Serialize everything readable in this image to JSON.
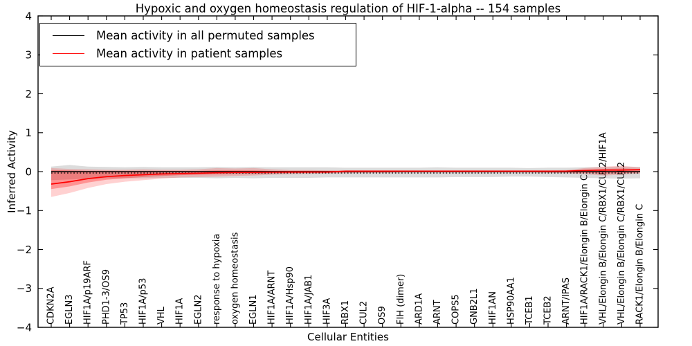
{
  "figure": {
    "title": "Hypoxic and oxygen homeostasis regulation of HIF-1-alpha -- 154 samples"
  },
  "legend": {
    "items": [
      {
        "label": "Mean activity in all permuted samples",
        "color": "#000000"
      },
      {
        "label": "Mean activity in patient samples",
        "color": "#ff0000"
      }
    ]
  },
  "chart_data": {
    "type": "line",
    "title": "Hypoxic and oxygen homeostasis regulation of HIF-1-alpha -- 154 samples",
    "xlabel": "Cellular Entities",
    "ylabel": "Inferred Activity",
    "ylim": [
      -4,
      4
    ],
    "yticks": [
      4,
      3,
      2,
      1,
      0,
      -1,
      -2,
      -3,
      -4
    ],
    "ytick_labels": [
      "4",
      "3",
      "2",
      "1",
      "0",
      "−1",
      "−2",
      "−3",
      "−4"
    ],
    "grid": false,
    "legend_position": "upper left",
    "colors": {
      "permuted_line": "#000000",
      "patient_line": "#ff0000",
      "permuted_band": "rgba(130,130,130,0.28)",
      "patient_band_outer": "rgba(255,0,0,0.18)",
      "patient_band_inner": "rgba(255,0,0,0.30)",
      "frame": "#000000"
    },
    "categories": [
      "CDKN2A",
      "EGLN3",
      "HIF1A/p19ARF",
      "PHD1-3/OS9",
      "TP53",
      "HIF1A/p53",
      "VHL",
      "HIF1A",
      "EGLN2",
      "response to hypoxia",
      "oxygen homeostasis",
      "EGLN1",
      "HIF1A/ARNT",
      "HIF1A/Hsp90",
      "HIF1A/JAB1",
      "HIF3A",
      "RBX1",
      "CUL2",
      "OS9",
      "FIH (dimer)",
      "ARD1A",
      "ARNT",
      "COPS5",
      "GNB2L1",
      "HIF1AN",
      "HSP90AA1",
      "TCEB1",
      "TCEB2",
      "ARNT/IPAS",
      "HIF1A/RACK1/Elongin B/Elongin C",
      "VHL/Elongin B/Elongin C/RBX1/CUL2/HIF1A",
      "VHL/Elongin B/Elongin C/RBX1/CUL2",
      "RACK1/Elongin B/Elongin C"
    ],
    "series": [
      {
        "name": "Mean activity in all permuted samples",
        "color": "#000000",
        "values": [
          0,
          0,
          0,
          0,
          0,
          0,
          0,
          0,
          0,
          0,
          0,
          0,
          0,
          0,
          0,
          0,
          0,
          0,
          0,
          0,
          0,
          0,
          0,
          0,
          0,
          0,
          0,
          0,
          0,
          0,
          0,
          0,
          0
        ],
        "band_upper": [
          0.13,
          0.17,
          0.13,
          0.12,
          0.11,
          0.12,
          0.11,
          0.11,
          0.11,
          0.12,
          0.11,
          0.12,
          0.11,
          0.11,
          0.11,
          0.11,
          0.1,
          0.1,
          0.1,
          0.1,
          0.1,
          0.11,
          0.1,
          0.1,
          0.1,
          0.1,
          0.09,
          0.1,
          0.1,
          0.11,
          0.12,
          0.13,
          0.12
        ],
        "band_lower": [
          -0.22,
          -0.2,
          -0.18,
          -0.17,
          -0.17,
          -0.17,
          -0.16,
          -0.16,
          -0.16,
          -0.17,
          -0.16,
          -0.17,
          -0.16,
          -0.16,
          -0.16,
          -0.15,
          -0.15,
          -0.15,
          -0.15,
          -0.15,
          -0.15,
          -0.15,
          -0.14,
          -0.14,
          -0.14,
          -0.13,
          -0.13,
          -0.14,
          -0.15,
          -0.16,
          -0.17,
          -0.18,
          -0.17
        ]
      },
      {
        "name": "Mean activity in patient samples",
        "color": "#ff0000",
        "values": [
          -0.32,
          -0.26,
          -0.18,
          -0.13,
          -0.1,
          -0.08,
          -0.06,
          -0.05,
          -0.04,
          -0.03,
          -0.02,
          -0.02,
          -0.015,
          -0.01,
          -0.01,
          -0.01,
          0.01,
          0.01,
          0.01,
          0.01,
          0.01,
          0.01,
          0.01,
          0.01,
          0.01,
          0.01,
          0.01,
          0.01,
          0.015,
          0.03,
          0.04,
          0.04,
          0.05
        ],
        "band_inner_upper": [
          0.04,
          0.03,
          0.02,
          0.02,
          0.02,
          0.02,
          0.02,
          0.02,
          0.02,
          0.03,
          0.03,
          0.03,
          0.02,
          0.02,
          0.02,
          0.02,
          0.02,
          0.02,
          0.02,
          0.02,
          0.02,
          0.02,
          0.02,
          0.02,
          0.02,
          0.02,
          0.02,
          0.02,
          0.02,
          0.04,
          0.07,
          0.08,
          0.07
        ],
        "band_inner_lower": [
          -0.45,
          -0.38,
          -0.28,
          -0.21,
          -0.17,
          -0.14,
          -0.11,
          -0.09,
          -0.08,
          -0.07,
          -0.06,
          -0.06,
          -0.05,
          -0.04,
          -0.03,
          -0.03,
          -0.02,
          -0.02,
          -0.02,
          -0.01,
          -0.01,
          -0.01,
          -0.01,
          -0.01,
          -0.01,
          -0.01,
          -0.01,
          -0.02,
          -0.02,
          -0.03,
          -0.05,
          -0.04,
          -0.02
        ],
        "band_outer_upper": [
          0.09,
          0.07,
          0.06,
          0.05,
          0.05,
          0.06,
          0.05,
          0.05,
          0.06,
          0.09,
          0.08,
          0.09,
          0.06,
          0.04,
          0.04,
          0.03,
          0.03,
          0.03,
          0.03,
          0.03,
          0.03,
          0.03,
          0.03,
          0.03,
          0.03,
          0.03,
          0.03,
          0.03,
          0.04,
          0.09,
          0.13,
          0.15,
          0.11
        ],
        "band_outer_lower": [
          -0.65,
          -0.55,
          -0.42,
          -0.32,
          -0.26,
          -0.22,
          -0.18,
          -0.15,
          -0.14,
          -0.13,
          -0.11,
          -0.1,
          -0.08,
          -0.07,
          -0.06,
          -0.05,
          -0.04,
          -0.03,
          -0.03,
          -0.02,
          -0.02,
          -0.02,
          -0.02,
          -0.02,
          -0.02,
          -0.02,
          -0.02,
          -0.03,
          -0.04,
          -0.07,
          -0.1,
          -0.08,
          -0.05
        ]
      }
    ]
  }
}
